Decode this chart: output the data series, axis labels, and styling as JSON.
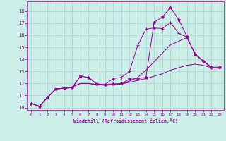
{
  "xlabel": "Windchill (Refroidissement éolien,°C)",
  "background_color": "#cceee8",
  "grid_color": "#aad4ce",
  "line_color": "#990099",
  "xlim": [
    -0.5,
    23.5
  ],
  "ylim": [
    9.8,
    18.8
  ],
  "xticks": [
    0,
    1,
    2,
    3,
    4,
    5,
    6,
    7,
    8,
    9,
    10,
    11,
    12,
    13,
    14,
    15,
    16,
    17,
    18,
    19,
    20,
    21,
    22,
    23
  ],
  "yticks": [
    10,
    11,
    12,
    13,
    14,
    15,
    16,
    17,
    18
  ],
  "series": [
    {
      "x": [
        0,
        1,
        2,
        3,
        4,
        5,
        6,
        7,
        8,
        9,
        10,
        11,
        12,
        13,
        14,
        15,
        16,
        17,
        18,
        19,
        20,
        21,
        22,
        23
      ],
      "y": [
        10.35,
        10.1,
        10.85,
        11.55,
        11.6,
        11.65,
        12.6,
        12.5,
        11.95,
        11.9,
        11.95,
        12.0,
        12.35,
        12.4,
        12.5,
        17.05,
        17.5,
        18.3,
        17.3,
        15.9,
        14.4,
        13.85,
        13.35,
        13.35
      ],
      "marker": "*",
      "markersize": 3
    },
    {
      "x": [
        0,
        1,
        2,
        3,
        4,
        5,
        6,
        7,
        8,
        9,
        10,
        11,
        12,
        13,
        14,
        15,
        16,
        17,
        18,
        19,
        20,
        21,
        22,
        23
      ],
      "y": [
        10.35,
        10.1,
        10.85,
        11.55,
        11.6,
        11.65,
        12.6,
        12.5,
        11.95,
        11.9,
        12.4,
        12.5,
        13.0,
        15.15,
        16.5,
        16.6,
        16.55,
        17.05,
        16.15,
        15.85,
        14.45,
        13.85,
        13.3,
        13.3
      ],
      "marker": "+",
      "markersize": 3
    },
    {
      "x": [
        0,
        1,
        2,
        3,
        4,
        5,
        6,
        7,
        8,
        9,
        10,
        11,
        12,
        13,
        14,
        15,
        16,
        17,
        18,
        19,
        20,
        21,
        22,
        23
      ],
      "y": [
        10.35,
        10.1,
        10.85,
        11.55,
        11.6,
        11.7,
        12.0,
        12.0,
        11.9,
        11.85,
        11.9,
        11.95,
        12.1,
        12.25,
        12.4,
        12.6,
        12.8,
        13.1,
        13.3,
        13.5,
        13.6,
        13.5,
        13.3,
        13.25
      ],
      "marker": null,
      "markersize": 0
    },
    {
      "x": [
        0,
        1,
        2,
        3,
        4,
        5,
        6,
        7,
        8,
        9,
        10,
        11,
        12,
        13,
        14,
        15,
        16,
        17,
        18,
        19,
        20,
        21,
        22,
        23
      ],
      "y": [
        10.35,
        10.1,
        10.85,
        11.55,
        11.6,
        11.7,
        12.0,
        12.0,
        11.9,
        11.85,
        11.9,
        11.95,
        12.2,
        12.5,
        13.1,
        13.8,
        14.5,
        15.2,
        15.5,
        15.8,
        14.45,
        13.85,
        13.3,
        13.3
      ],
      "marker": null,
      "markersize": 0
    }
  ]
}
